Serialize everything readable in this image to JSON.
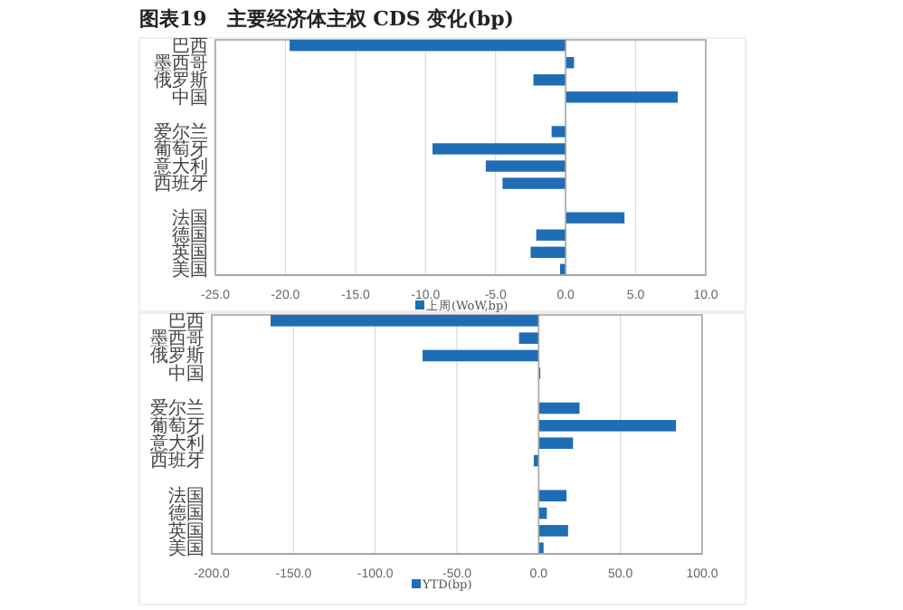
{
  "chart_data": [
    {
      "type": "bar",
      "orientation": "horizontal",
      "title": "图表19　主要经济体主权 CDS 变化(bp)",
      "categories": [
        "巴西",
        "墨西哥",
        "俄罗斯",
        "中国",
        null,
        "爱尔兰",
        "葡萄牙",
        "意大利",
        "西班牙",
        null,
        "法国",
        "德国",
        "英国",
        "美国"
      ],
      "series": [
        {
          "name": "上周(WoW,bp)",
          "color": "#1f6db5",
          "values": [
            -19.7,
            0.6,
            -2.3,
            8.0,
            null,
            -1.0,
            -9.5,
            -5.7,
            -4.5,
            null,
            4.2,
            -2.1,
            -2.5,
            -0.4
          ]
        }
      ],
      "xlim": [
        -25,
        10
      ],
      "xticks": [
        {
          "value": -25,
          "label": "-25.0"
        },
        {
          "value": -20,
          "label": "-20.0"
        },
        {
          "value": -15,
          "label": "-15.0"
        },
        {
          "value": -10,
          "label": "-10.0"
        },
        {
          "value": -5,
          "label": "-5.0"
        },
        {
          "value": 0,
          "label": "0.0"
        },
        {
          "value": 5,
          "label": "5.0"
        },
        {
          "value": 10,
          "label": "10.0"
        }
      ],
      "grid": "x",
      "legend": "bottom"
    },
    {
      "type": "bar",
      "orientation": "horizontal",
      "categories": [
        "巴西",
        "墨西哥",
        "俄罗斯",
        "中国",
        null,
        "爱尔兰",
        "葡萄牙",
        "意大利",
        "西班牙",
        null,
        "法国",
        "德国",
        "英国",
        "美国"
      ],
      "series": [
        {
          "name": "YTD(bp)",
          "color": "#1f6db5",
          "values": [
            -164,
            -12,
            -71,
            1,
            null,
            25,
            84,
            21,
            -3,
            null,
            17,
            5,
            18,
            3
          ]
        }
      ],
      "xlim": [
        -200,
        100
      ],
      "xticks": [
        {
          "value": -200,
          "label": "-200.0"
        },
        {
          "value": -150,
          "label": "-150.0"
        },
        {
          "value": -100,
          "label": "-100.0"
        },
        {
          "value": -50,
          "label": "-50.0"
        },
        {
          "value": 0,
          "label": "0.0"
        },
        {
          "value": 50,
          "label": "50.0"
        },
        {
          "value": 100,
          "label": "100.0"
        }
      ],
      "grid": "x",
      "legend": "bottom"
    }
  ]
}
